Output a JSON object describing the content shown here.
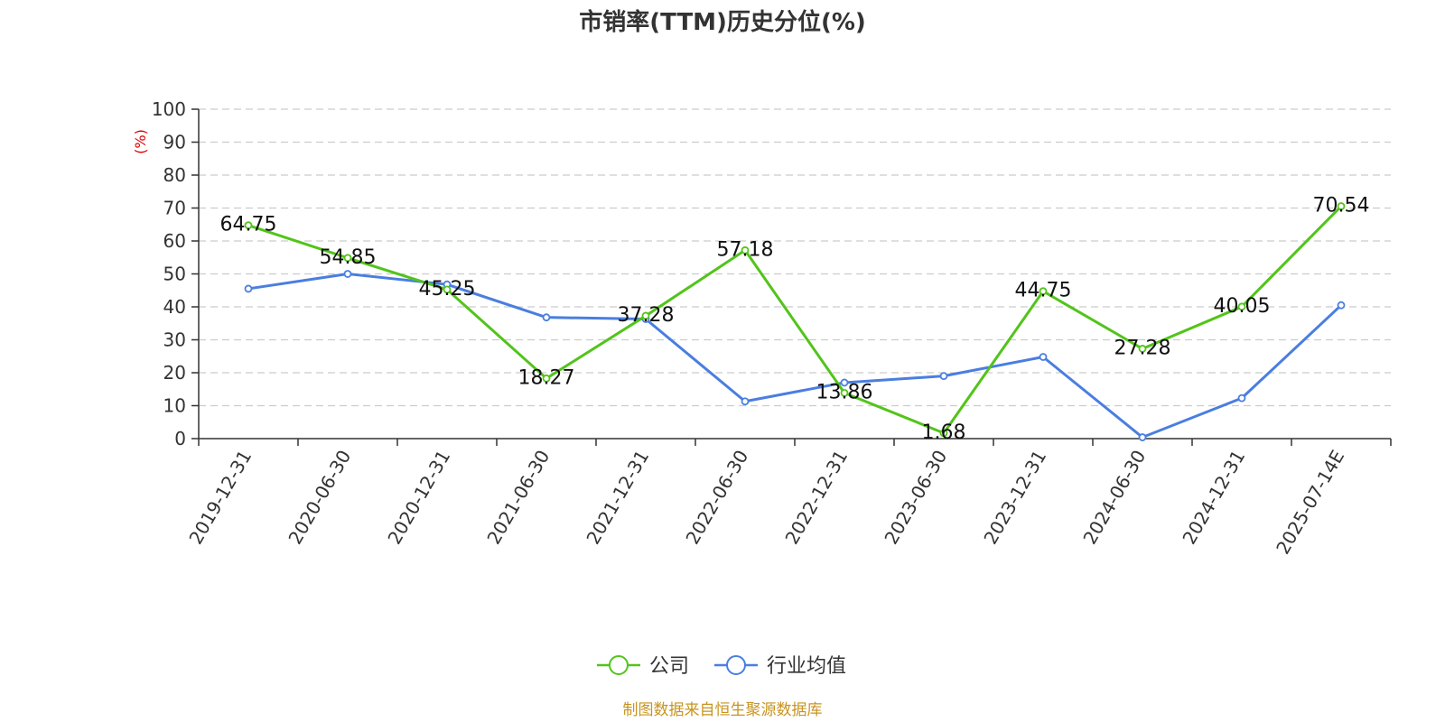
{
  "colors": {
    "company": "#52c41a",
    "industry": "#4a7ee0",
    "ylabel": "#e00000",
    "source": "#c8941f",
    "grid": "#cccccc"
  },
  "chart_data": {
    "type": "line",
    "title": "市销率(TTM)历史分位(%)",
    "ylabel": "(%)",
    "xlabel": "",
    "ylim": [
      0,
      100
    ],
    "yticks": [
      "0",
      "10",
      "20",
      "30",
      "40",
      "50",
      "60",
      "70",
      "80",
      "90",
      "100"
    ],
    "categories": [
      "2019-12-31",
      "2020-06-30",
      "2020-12-31",
      "2021-06-30",
      "2021-12-31",
      "2022-06-30",
      "2022-12-31",
      "2023-06-30",
      "2023-12-31",
      "2024-06-30",
      "2024-12-31",
      "2025-07-14E"
    ],
    "grid": "horizontal dashed",
    "legend_position": "bottom-center",
    "series": [
      {
        "name": "公司",
        "color_key": "company",
        "values": [
          64.75,
          54.85,
          45.25,
          18.27,
          37.28,
          57.18,
          13.86,
          1.68,
          44.75,
          27.28,
          40.05,
          70.54
        ],
        "labels": [
          "64.75",
          "54.85",
          "45.25",
          "18.27",
          "37.28",
          "57.18",
          "13.86",
          "1.68",
          "44.75",
          "27.28",
          "40.05",
          "70.54"
        ]
      },
      {
        "name": "行业均值",
        "color_key": "industry",
        "values": [
          45.5,
          50.0,
          46.8,
          36.8,
          36.3,
          11.3,
          17.0,
          19.0,
          24.8,
          0.4,
          12.3,
          40.5
        ]
      }
    ]
  },
  "source_text": "制图数据来自恒生聚源数据库"
}
